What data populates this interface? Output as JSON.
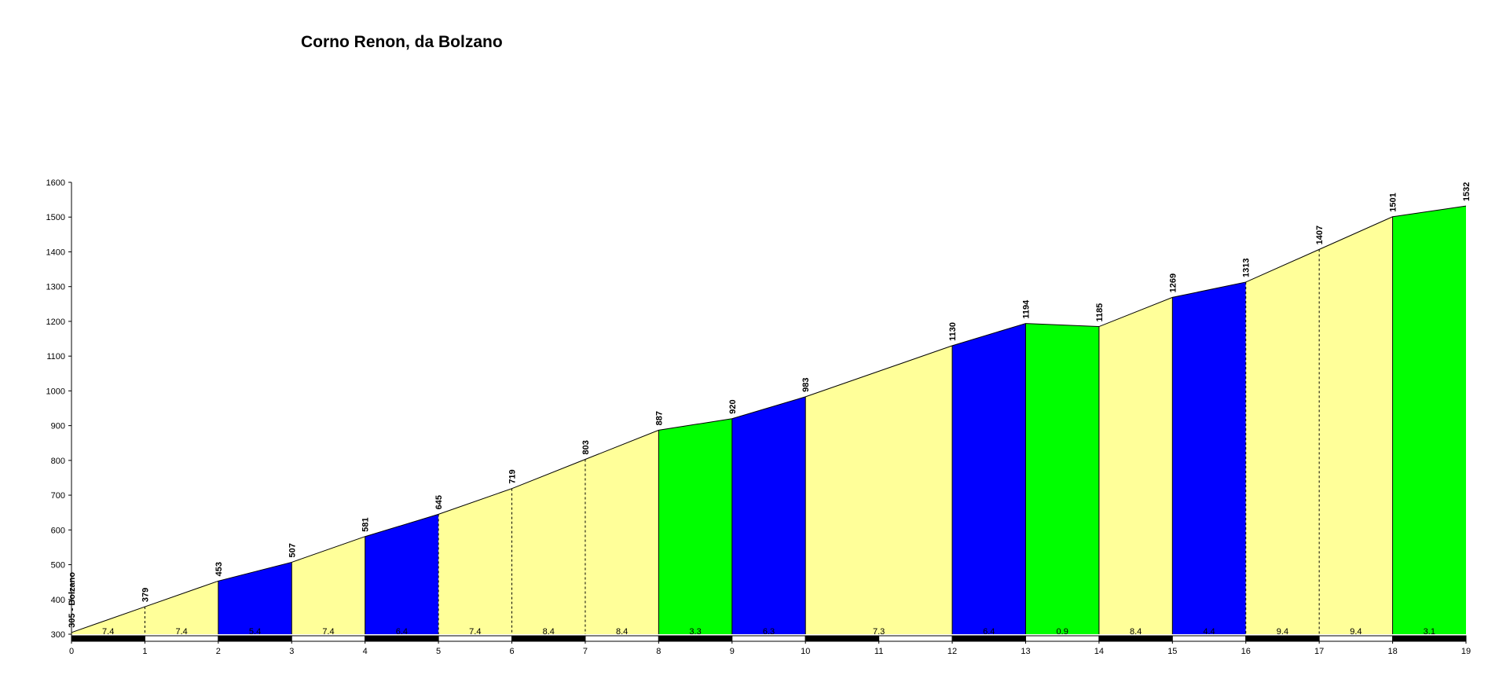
{
  "chart_data": {
    "type": "area",
    "title": "Corno Renon, da Bolzano",
    "xlabel": "",
    "ylabel": "",
    "xlim": [
      0,
      19
    ],
    "ylim": [
      300,
      1600
    ],
    "x_ticks": [
      "0",
      "1",
      "2",
      "3",
      "4",
      "5",
      "6",
      "7",
      "8",
      "9",
      "10",
      "11",
      "12",
      "13",
      "14",
      "15",
      "16",
      "17",
      "18",
      "19"
    ],
    "y_ticks": [
      "300",
      "400",
      "500",
      "600",
      "700",
      "800",
      "900",
      "1000",
      "1100",
      "1200",
      "1300",
      "1400",
      "1500",
      "1600"
    ],
    "start_label": "305 - Bolzano",
    "points": [
      {
        "x": 0,
        "y": 305,
        "label": "305 - Bolzano"
      },
      {
        "x": 1,
        "y": 379,
        "label": "379"
      },
      {
        "x": 2,
        "y": 453,
        "label": "453"
      },
      {
        "x": 3,
        "y": 507,
        "label": "507"
      },
      {
        "x": 4,
        "y": 581,
        "label": "581"
      },
      {
        "x": 5,
        "y": 645,
        "label": "645"
      },
      {
        "x": 6,
        "y": 719,
        "label": "719"
      },
      {
        "x": 7,
        "y": 803,
        "label": "803"
      },
      {
        "x": 8,
        "y": 887,
        "label": "887"
      },
      {
        "x": 9,
        "y": 920,
        "label": "920"
      },
      {
        "x": 10,
        "y": 983,
        "label": "983"
      },
      {
        "x": 12,
        "y": 1130,
        "label": "1130"
      },
      {
        "x": 13,
        "y": 1194,
        "label": "1194"
      },
      {
        "x": 14,
        "y": 1185,
        "label": "1185"
      },
      {
        "x": 15,
        "y": 1269,
        "label": "1269"
      },
      {
        "x": 16,
        "y": 1313,
        "label": "1313"
      },
      {
        "x": 17,
        "y": 1407,
        "label": "1407"
      },
      {
        "x": 18,
        "y": 1501,
        "label": "1501"
      },
      {
        "x": 19,
        "y": 1532,
        "label": "1532"
      }
    ],
    "segments": [
      {
        "x0": 0,
        "x1": 1,
        "gradient": "7.4",
        "color": "yellow",
        "divider": true
      },
      {
        "x0": 1,
        "x1": 2,
        "gradient": "7.4",
        "color": "yellow",
        "divider": false
      },
      {
        "x0": 2,
        "x1": 3,
        "gradient": "5.4",
        "color": "blue",
        "divider": false
      },
      {
        "x0": 3,
        "x1": 4,
        "gradient": "7.4",
        "color": "yellow",
        "divider": false
      },
      {
        "x0": 4,
        "x1": 5,
        "gradient": "6.4",
        "color": "blue",
        "divider": false
      },
      {
        "x0": 5,
        "x1": 6,
        "gradient": "7.4",
        "color": "yellow",
        "divider": true
      },
      {
        "x0": 6,
        "x1": 7,
        "gradient": "8.4",
        "color": "yellow",
        "divider": true
      },
      {
        "x0": 7,
        "x1": 8,
        "gradient": "8.4",
        "color": "yellow",
        "divider": false
      },
      {
        "x0": 8,
        "x1": 9,
        "gradient": "3.3",
        "color": "green",
        "divider": false
      },
      {
        "x0": 9,
        "x1": 10,
        "gradient": "6.3",
        "color": "blue",
        "divider": false
      },
      {
        "x0": 10,
        "x1": 12,
        "gradient": "7.3",
        "color": "yellow",
        "divider": false
      },
      {
        "x0": 12,
        "x1": 13,
        "gradient": "6.4",
        "color": "blue",
        "divider": false
      },
      {
        "x0": 13,
        "x1": 14,
        "gradient": "0.9",
        "color": "green",
        "divider": false
      },
      {
        "x0": 14,
        "x1": 15,
        "gradient": "8.4",
        "color": "yellow",
        "divider": false
      },
      {
        "x0": 15,
        "x1": 16,
        "gradient": "4.4",
        "color": "blue",
        "divider": false
      },
      {
        "x0": 16,
        "x1": 17,
        "gradient": "9.4",
        "color": "yellow",
        "divider": true
      },
      {
        "x0": 17,
        "x1": 18,
        "gradient": "9.4",
        "color": "yellow",
        "divider": false
      },
      {
        "x0": 18,
        "x1": 19,
        "gradient": "3.1",
        "color": "green",
        "divider": false
      }
    ],
    "km_bar": [
      "black",
      "white",
      "black",
      "white",
      "black",
      "white",
      "black",
      "white",
      "black",
      "white",
      "black",
      "white",
      "black",
      "white",
      "black",
      "white",
      "black",
      "white",
      "black"
    ],
    "colors": {
      "yellow": "#ffff99",
      "blue": "#0000ff",
      "green": "#00ff00",
      "outline": "#000000",
      "background": "#ffffff"
    },
    "grid": false,
    "legend": "none"
  }
}
